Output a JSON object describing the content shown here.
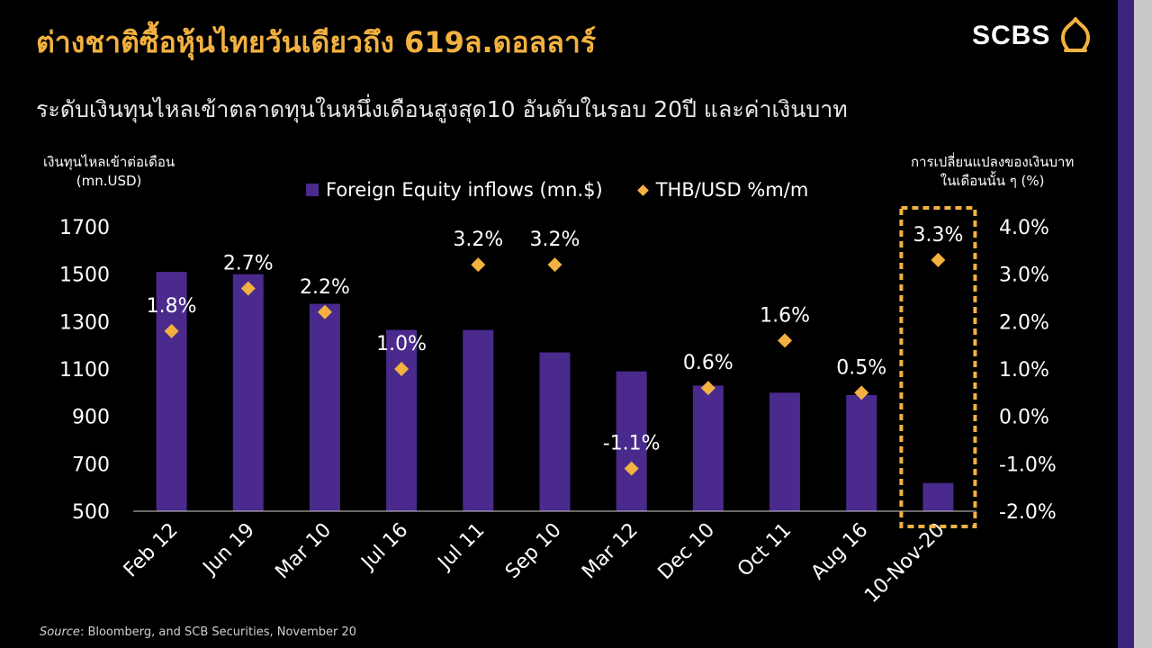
{
  "title": "ต่างชาติซื้อหุ้นไทยวันเดียวถึง 619ล.ดอลลาร์",
  "subtitle": "ระดับเงินทุนไหลเข้าตลาดทุนในหนึ่งเดือนสูงสุด10 อันดับในรอบ 20ปี และค่าเงินบาท",
  "logo": {
    "text": "SCBS"
  },
  "left_axis_caption": [
    "เงินทุนไหลเข้าต่อเดือน",
    "(mn.USD)"
  ],
  "right_axis_caption": [
    "การเปลี่ยนแปลงของเงินบาท",
    "ในเดือนนั้น ๆ (%)"
  ],
  "source": {
    "label": "Source",
    "text": ": Bloomberg, and SCB Securities, November 20"
  },
  "colors": {
    "title": "#F2B140",
    "bar": "#4A2A8C",
    "marker": "#F2B140",
    "highlight": "#F2B140",
    "sidebar": "#3B2380"
  },
  "chart_data": {
    "type": "bar",
    "categories": [
      "Feb 12",
      "Jun 19",
      "Mar 10",
      "Jul 16",
      "Jul 11",
      "Sep 10",
      "Mar 12",
      "Dec 10",
      "Oct 11",
      "Aug 16",
      "10-Nov-20"
    ],
    "series": [
      {
        "name": "Foreign Equity inflows (mn.$)",
        "type": "bar",
        "axis": "left",
        "values": [
          1510,
          1500,
          1375,
          1265,
          1265,
          1170,
          1090,
          1030,
          1000,
          990,
          619
        ]
      },
      {
        "name": "THB/USD %m/m",
        "type": "scatter",
        "marker": "diamond",
        "axis": "right",
        "values": [
          1.8,
          2.7,
          2.2,
          1.0,
          3.2,
          3.2,
          -1.1,
          0.6,
          1.6,
          0.5,
          3.3
        ],
        "labels": [
          "1.8%",
          "2.7%",
          "2.2%",
          "1.0%",
          "3.2%",
          "3.2%",
          "-1.1%",
          "0.6%",
          "1.6%",
          "0.5%",
          "3.3%"
        ]
      }
    ],
    "y_left": {
      "ticks": [
        1700,
        1500,
        1300,
        1100,
        900,
        700,
        500
      ],
      "range": [
        500,
        1700
      ]
    },
    "y_right": {
      "ticks": [
        "4.0%",
        "3.0%",
        "2.0%",
        "1.0%",
        "0.0%",
        "-1.0%",
        "-2.0%"
      ],
      "range": [
        -2.0,
        4.0
      ]
    },
    "highlight_category": "10-Nov-20",
    "legend_position": "top-center",
    "grid": false
  }
}
